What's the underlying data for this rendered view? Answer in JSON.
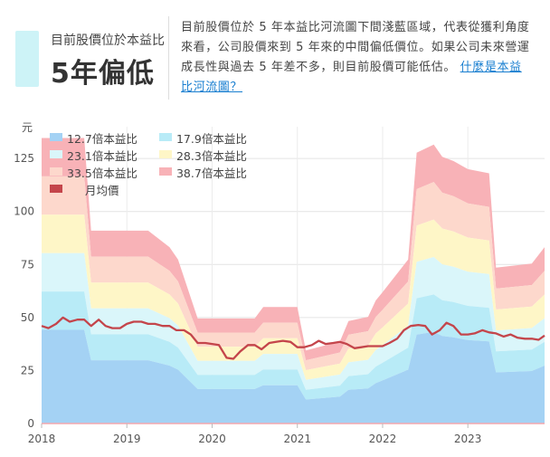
{
  "header": {
    "subtitle": "目前股價位於本益比",
    "headline": "5年偏低",
    "description": "目前股價位於 5 年本益比河流圖下間淺藍區域，代表從獲利角度來看，公司股價來到 5 年來的中間偏低價位。如果公司未來營運成長性與過去 5 年差不多，則目前股價可能低估。",
    "link_text": "什麼是本益比河流圖？"
  },
  "colors": {
    "accent": "#cdf3f7",
    "link": "#1a7fd0",
    "band_colors": [
      "#a4d2f4",
      "#b8ebf7",
      "#daf6fa",
      "#fef6c7",
      "#fdd8cc",
      "#f8b2b7"
    ],
    "price_line": "#c4454b",
    "baseline": "#f4a7ad"
  },
  "chart_data": {
    "type": "area",
    "y_unit": "元",
    "ylim": [
      0,
      140
    ],
    "yticks": [
      0,
      25,
      50,
      75,
      100,
      125
    ],
    "xlim": [
      2018,
      2023.9
    ],
    "xticks": [
      2018,
      2019,
      2020,
      2021,
      2022,
      2023
    ],
    "grid": true,
    "legend_position": "top-left",
    "bands": [
      {
        "name": "12.7倍本益比",
        "multiple": 12.7,
        "color": "#a4d2f4"
      },
      {
        "name": "17.9倍本益比",
        "multiple": 17.9,
        "color": "#b8ebf7"
      },
      {
        "name": "23.1倍本益比",
        "multiple": 23.1,
        "color": "#daf6fa"
      },
      {
        "name": "28.3倍本益比",
        "multiple": 28.3,
        "color": "#fef6c7"
      },
      {
        "name": "33.5倍本益比",
        "multiple": 33.5,
        "color": "#fdd8cc"
      },
      {
        "name": "38.7倍本益比",
        "multiple": 38.7,
        "color": "#f8b2b7"
      }
    ],
    "price_series_name": "月均價",
    "eps_x": [
      2018.0,
      2018.5,
      2018.58,
      2019.25,
      2019.5,
      2019.6,
      2019.83,
      2020.5,
      2020.6,
      2021.0,
      2021.1,
      2021.5,
      2021.6,
      2021.83,
      2021.92,
      2022.0,
      2022.3,
      2022.4,
      2022.6,
      2022.7,
      2022.83,
      2023.0,
      2023.25,
      2023.33,
      2023.75,
      2023.9
    ],
    "eps": [
      3.48,
      3.48,
      2.35,
      2.35,
      2.15,
      2.0,
      1.28,
      1.28,
      1.42,
      1.42,
      0.89,
      1.0,
      1.25,
      1.3,
      1.5,
      1.6,
      2.0,
      3.3,
      3.4,
      3.25,
      3.2,
      3.1,
      3.05,
      1.9,
      1.95,
      2.15
    ],
    "price_x": [
      2018.0,
      2018.08,
      2018.17,
      2018.25,
      2018.33,
      2018.42,
      2018.5,
      2018.58,
      2018.67,
      2018.75,
      2018.83,
      2018.92,
      2019.0,
      2019.08,
      2019.17,
      2019.25,
      2019.33,
      2019.42,
      2019.5,
      2019.58,
      2019.67,
      2019.75,
      2019.83,
      2019.92,
      2020.0,
      2020.08,
      2020.17,
      2020.25,
      2020.33,
      2020.42,
      2020.5,
      2020.58,
      2020.67,
      2020.75,
      2020.83,
      2020.92,
      2021.0,
      2021.08,
      2021.17,
      2021.25,
      2021.33,
      2021.42,
      2021.5,
      2021.58,
      2021.67,
      2021.75,
      2021.83,
      2021.92,
      2022.0,
      2022.08,
      2022.17,
      2022.25,
      2022.33,
      2022.42,
      2022.5,
      2022.58,
      2022.67,
      2022.75,
      2022.83,
      2022.92,
      2023.0,
      2023.08,
      2023.17,
      2023.25,
      2023.33,
      2023.42,
      2023.5,
      2023.58,
      2023.67,
      2023.75,
      2023.83,
      2023.9
    ],
    "price": [
      46,
      45,
      47,
      50,
      48,
      49,
      49,
      46,
      49,
      46,
      45,
      45,
      47,
      48,
      48,
      47,
      47,
      46,
      46,
      44,
      44,
      42,
      38,
      38,
      37.5,
      37,
      31,
      30.5,
      34,
      37,
      37,
      35,
      38,
      38.5,
      39,
      38.5,
      36,
      36,
      37,
      39,
      37.5,
      38,
      38.5,
      37.5,
      35.5,
      36,
      36.5,
      36.5,
      36.5,
      38,
      40,
      44,
      46,
      46.5,
      46,
      42,
      44,
      47.5,
      46,
      42,
      42,
      42.5,
      44,
      43,
      42.5,
      41,
      42,
      40.5,
      40,
      40,
      39.5,
      41.5
    ]
  }
}
